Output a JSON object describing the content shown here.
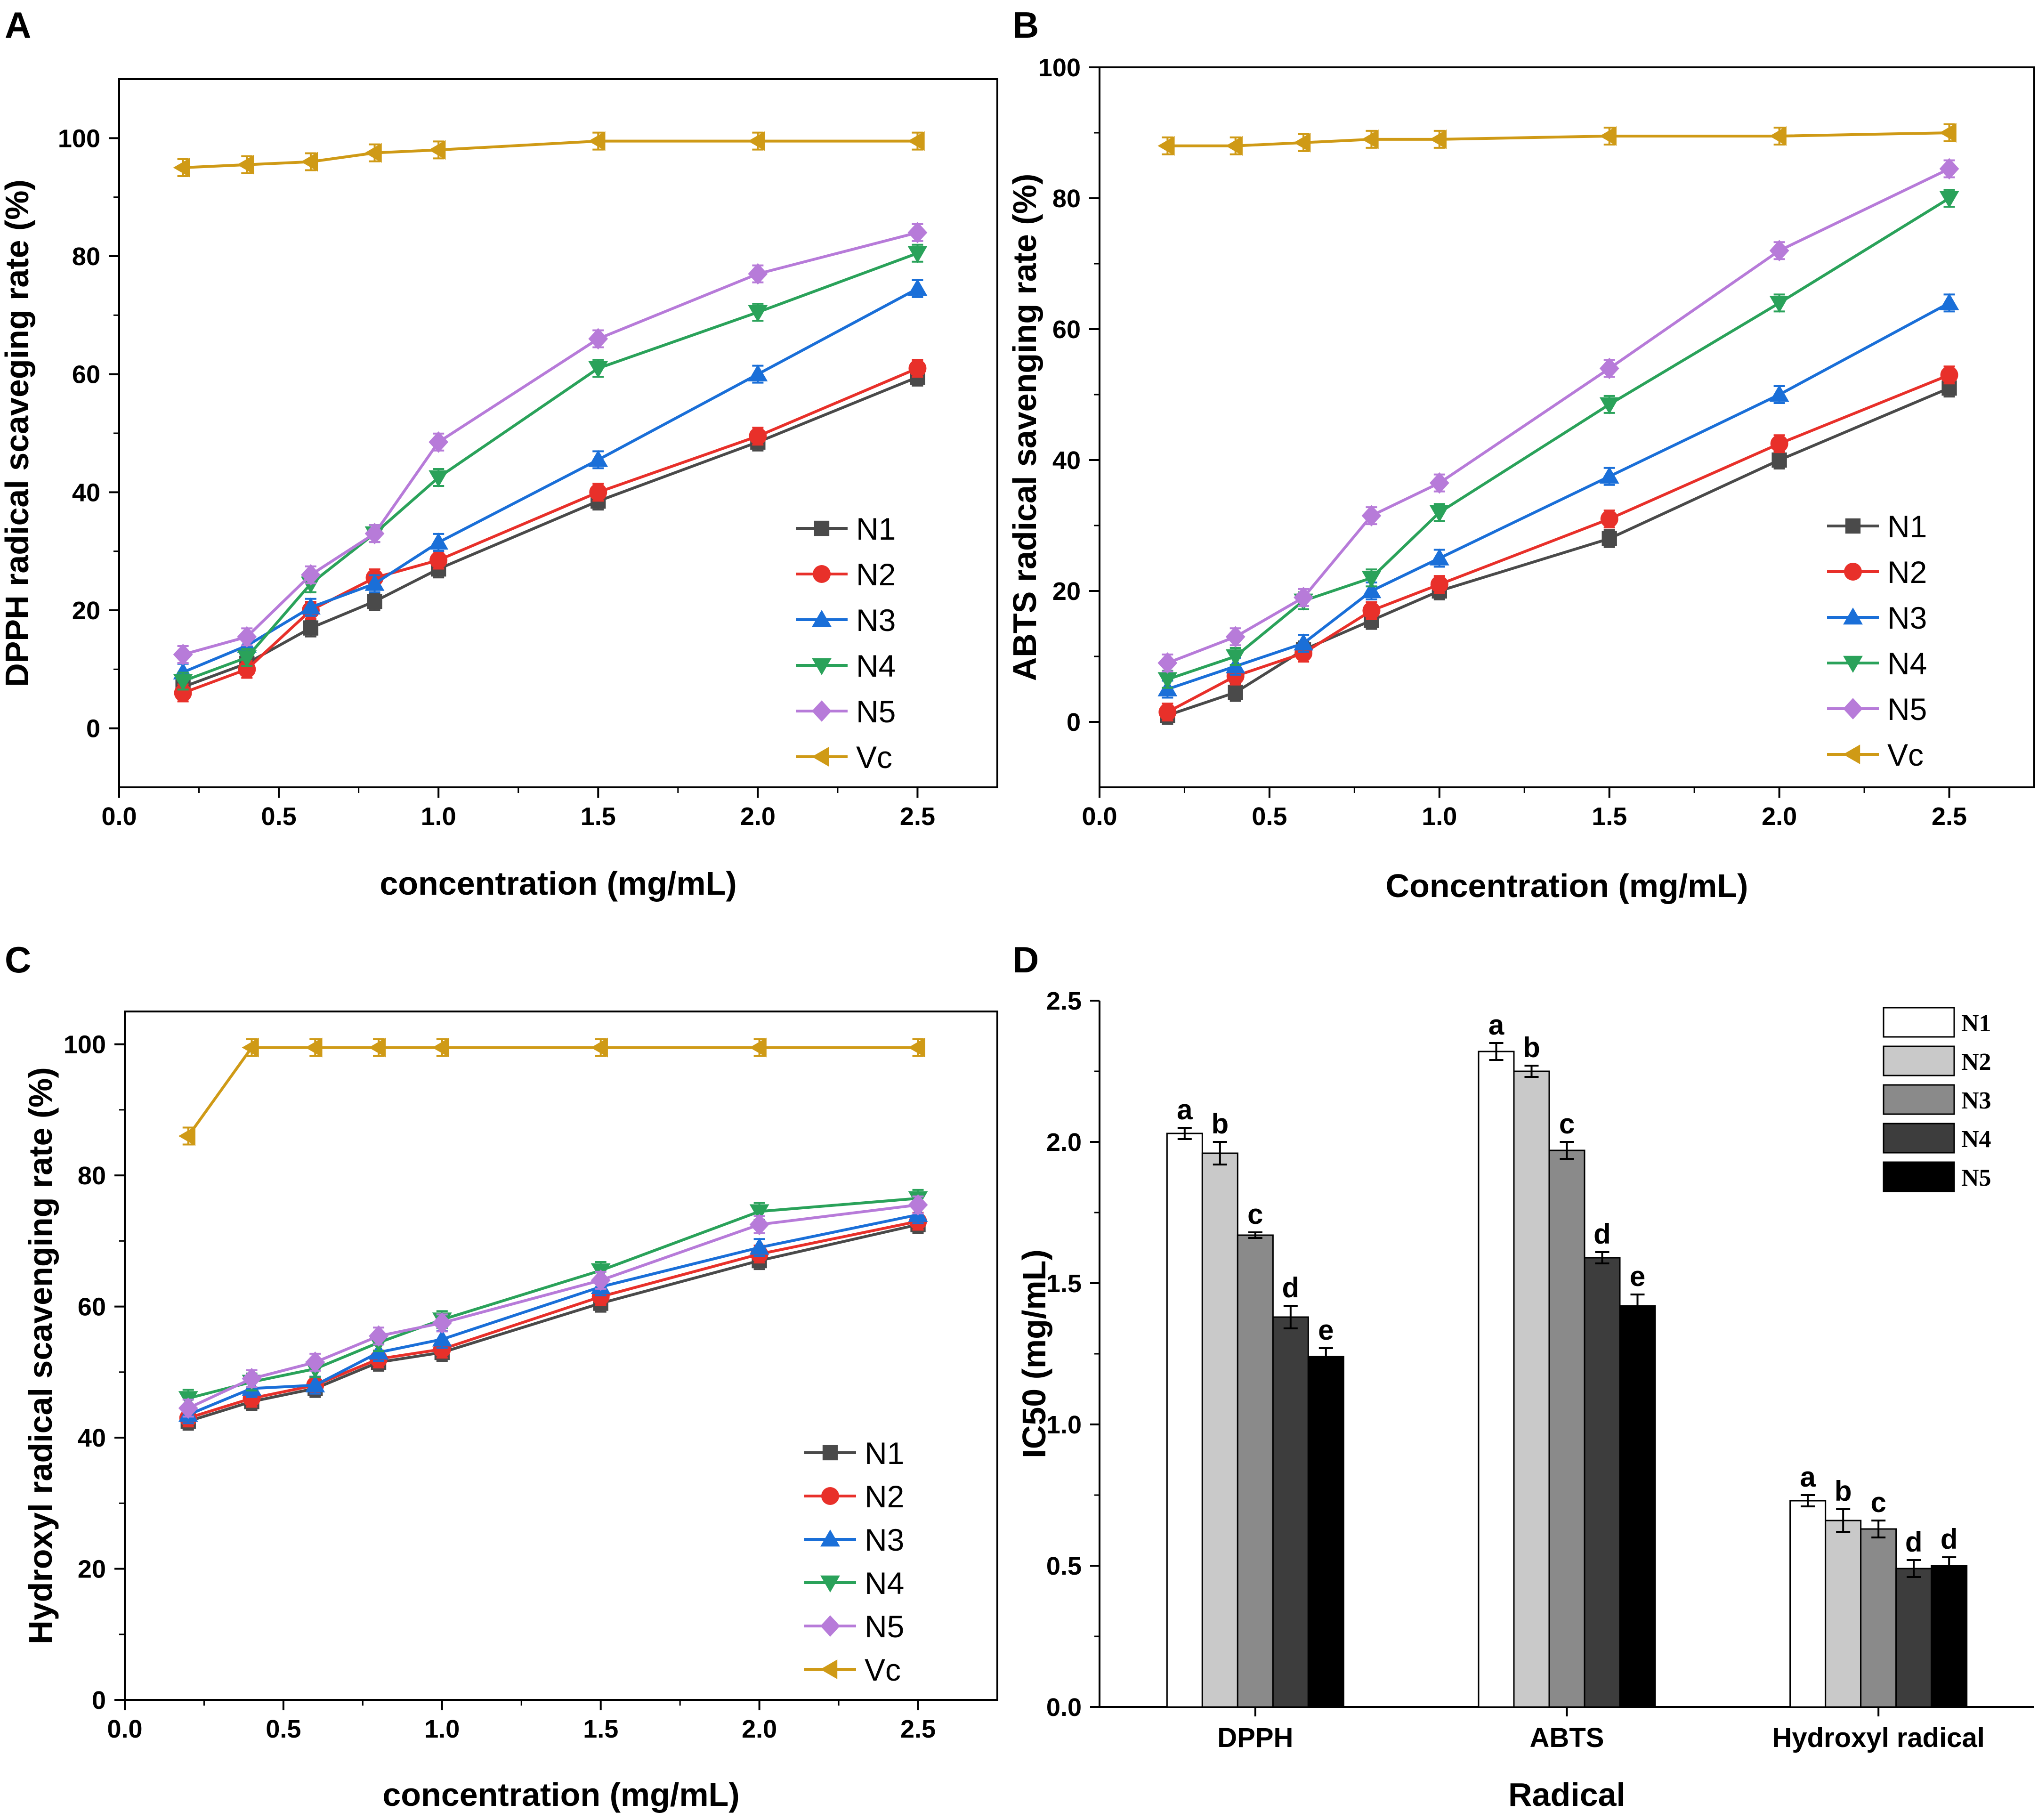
{
  "colors": {
    "N1": "#4a4a4a",
    "N2": "#e8302a",
    "N3": "#1a6fd8",
    "N4": "#2aa25a",
    "N5": "#b77bd9",
    "Vc": "#cf9a16",
    "bars": [
      "#ffffff",
      "#c9c9c9",
      "#8a8a8a",
      "#3d3d3d",
      "#000000"
    ]
  },
  "chart_data": [
    {
      "panel": "A",
      "type": "line",
      "xlabel": "concentration (mg/mL)",
      "ylabel": "DPPH radical scaveging rate (%)",
      "xlim": [
        0,
        2.75
      ],
      "ylim": [
        -10,
        110
      ],
      "xticks": [
        "0.0",
        "0.5",
        "1.0",
        "1.5",
        "2.0",
        "2.5"
      ],
      "yticks": [
        "0",
        "20",
        "40",
        "60",
        "80",
        "100"
      ],
      "x": [
        0.2,
        0.4,
        0.6,
        0.8,
        1.0,
        1.5,
        2.0,
        2.5
      ],
      "series": [
        {
          "name": "N1",
          "marker": "square",
          "values": [
            7,
            11,
            17,
            21.5,
            27,
            38.5,
            48.5,
            59.5
          ]
        },
        {
          "name": "N2",
          "marker": "circle",
          "values": [
            6,
            10,
            20,
            25.5,
            28.5,
            40,
            49.5,
            61
          ]
        },
        {
          "name": "N3",
          "marker": "triangle-up",
          "values": [
            9.5,
            14,
            20.5,
            24.5,
            31.5,
            45.5,
            60,
            74.5
          ]
        },
        {
          "name": "N4",
          "marker": "triangle-down",
          "values": [
            8,
            12,
            24.5,
            33,
            42.5,
            61,
            70.5,
            80.5
          ]
        },
        {
          "name": "N5",
          "marker": "diamond",
          "values": [
            12.5,
            15.5,
            26,
            33,
            48.5,
            66,
            77,
            84
          ]
        },
        {
          "name": "Vc",
          "marker": "triangle-left",
          "values": [
            95,
            95.5,
            96,
            97.5,
            98,
            99.5,
            99.5,
            99.5
          ]
        }
      ],
      "legend": [
        "N1",
        "N2",
        "N3",
        "N4",
        "N5",
        "Vc"
      ]
    },
    {
      "panel": "B",
      "type": "line",
      "xlabel": "Concentration (mg/mL)",
      "ylabel": "ABTS radical savenging rate (%)",
      "xlim": [
        0,
        2.75
      ],
      "ylim": [
        -10,
        100
      ],
      "xticks": [
        "0.0",
        "0.5",
        "1.0",
        "1.5",
        "2.0",
        "2.5"
      ],
      "yticks": [
        "0",
        "20",
        "40",
        "60",
        "80",
        "100"
      ],
      "x": [
        0.2,
        0.4,
        0.6,
        0.8,
        1.0,
        1.5,
        2.0,
        2.5
      ],
      "series": [
        {
          "name": "N1",
          "marker": "square",
          "values": [
            1,
            4.5,
            11,
            15.5,
            20,
            28,
            40,
            51
          ]
        },
        {
          "name": "N2",
          "marker": "circle",
          "values": [
            1.5,
            7,
            10.5,
            17,
            21,
            31,
            42.5,
            53
          ]
        },
        {
          "name": "N3",
          "marker": "triangle-up",
          "values": [
            5,
            8.5,
            12,
            20,
            25,
            37.5,
            50,
            64
          ]
        },
        {
          "name": "N4",
          "marker": "triangle-down",
          "values": [
            6.5,
            10,
            18.5,
            22,
            32,
            48.5,
            64,
            80
          ]
        },
        {
          "name": "N5",
          "marker": "diamond",
          "values": [
            9,
            13,
            19,
            31.5,
            36.5,
            54,
            72,
            84.5
          ]
        },
        {
          "name": "Vc",
          "marker": "triangle-left",
          "values": [
            88,
            88,
            88.5,
            89,
            89,
            89.5,
            89.5,
            90
          ]
        }
      ],
      "legend": [
        "N1",
        "N2",
        "N3",
        "N4",
        "N5",
        "Vc"
      ]
    },
    {
      "panel": "C",
      "type": "line",
      "xlabel": "concentration (mg/mL)",
      "ylabel": "Hydroxyl radical scavenging rate (%)",
      "xlim": [
        0,
        2.75
      ],
      "ylim": [
        0,
        105
      ],
      "xticks": [
        "0.0",
        "0.5",
        "1.0",
        "1.5",
        "2.0",
        "2.5"
      ],
      "yticks": [
        "0",
        "20",
        "40",
        "60",
        "80",
        "100"
      ],
      "x": [
        0.2,
        0.4,
        0.6,
        0.8,
        1.0,
        1.5,
        2.0,
        2.5
      ],
      "series": [
        {
          "name": "N1",
          "marker": "square",
          "values": [
            42.5,
            45.5,
            47.5,
            51.5,
            53,
            60.5,
            67,
            72.5
          ]
        },
        {
          "name": "N2",
          "marker": "circle",
          "values": [
            43,
            46,
            48,
            52,
            53.5,
            61.5,
            68,
            73
          ]
        },
        {
          "name": "N3",
          "marker": "triangle-up",
          "values": [
            43.5,
            47.5,
            48,
            53,
            55,
            63,
            69,
            74
          ]
        },
        {
          "name": "N4",
          "marker": "triangle-down",
          "values": [
            46,
            48.5,
            50.5,
            54.5,
            58,
            65.5,
            74.5,
            76.5
          ]
        },
        {
          "name": "N5",
          "marker": "diamond",
          "values": [
            44.5,
            49,
            51.5,
            55.5,
            57.5,
            64,
            72.5,
            75.5
          ]
        },
        {
          "name": "Vc",
          "marker": "triangle-left",
          "values": [
            86,
            99.5,
            99.5,
            99.5,
            99.5,
            99.5,
            99.5,
            99.5
          ]
        }
      ],
      "legend": [
        "N1",
        "N2",
        "N3",
        "N4",
        "N5",
        "Vc"
      ]
    },
    {
      "panel": "D",
      "type": "bar",
      "xlabel": "Radical",
      "ylabel": "IC50 (mg/mL)",
      "ylim": [
        0,
        2.5
      ],
      "yticks": [
        "0.0",
        "0.5",
        "1.0",
        "1.5",
        "2.0",
        "2.5"
      ],
      "categories": [
        "DPPH",
        "ABTS",
        "Hydroxyl radical"
      ],
      "series": [
        {
          "name": "N1",
          "values": [
            2.03,
            2.32,
            0.73
          ],
          "errors": [
            0.02,
            0.03,
            0.02
          ],
          "letters": [
            "a",
            "a",
            "a"
          ]
        },
        {
          "name": "N2",
          "values": [
            1.96,
            2.25,
            0.66
          ],
          "errors": [
            0.04,
            0.02,
            0.04
          ],
          "letters": [
            "b",
            "b",
            "b"
          ]
        },
        {
          "name": "N3",
          "values": [
            1.67,
            1.97,
            0.63
          ],
          "errors": [
            0.01,
            0.03,
            0.03
          ],
          "letters": [
            "c",
            "c",
            "c"
          ]
        },
        {
          "name": "N4",
          "values": [
            1.38,
            1.59,
            0.49
          ],
          "errors": [
            0.04,
            0.02,
            0.03
          ],
          "letters": [
            "d",
            "d",
            "d"
          ]
        },
        {
          "name": "N5",
          "values": [
            1.24,
            1.42,
            0.5
          ],
          "errors": [
            0.03,
            0.04,
            0.03
          ],
          "letters": [
            "e",
            "e",
            "d"
          ]
        }
      ],
      "legend": [
        "N1",
        "N2",
        "N3",
        "N4",
        "N5"
      ]
    }
  ]
}
